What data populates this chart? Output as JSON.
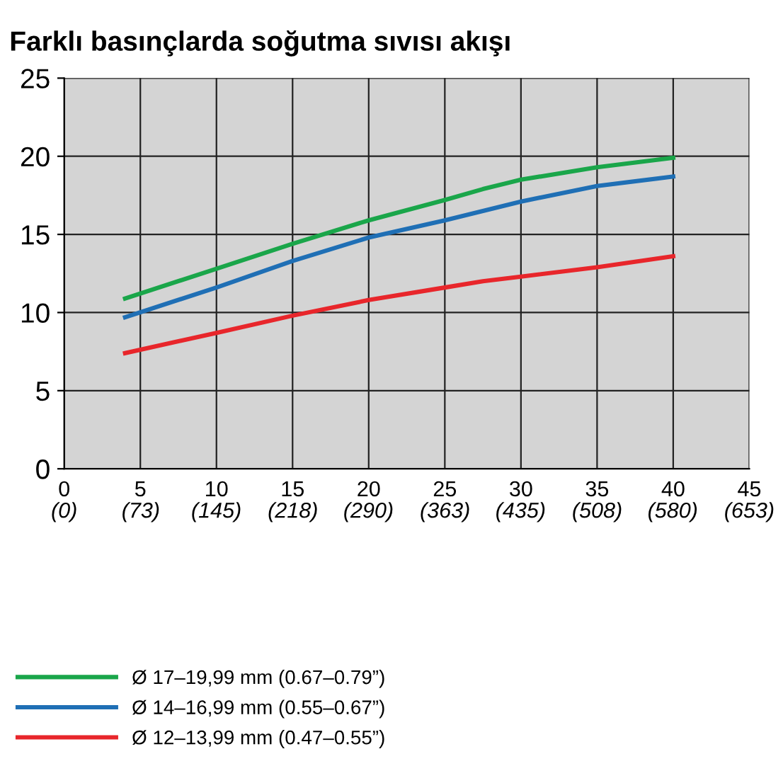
{
  "chart_data": {
    "type": "line",
    "title": "Farklı basınçlarda soğutma sıvısı akışı",
    "x": [
      4,
      10,
      15,
      20,
      25,
      27.5,
      30,
      35,
      40
    ],
    "series": [
      {
        "name": "Ø 17–19,99 mm (0.67–0.79”)",
        "color": "#1aa64a",
        "values": [
          10.9,
          12.8,
          14.4,
          15.9,
          17.2,
          17.9,
          18.5,
          19.3,
          19.9
        ]
      },
      {
        "name": "Ø 14–16,99 mm (0.55–0.67”)",
        "color": "#1f6fb5",
        "values": [
          9.7,
          11.6,
          13.3,
          14.8,
          15.9,
          16.5,
          17.1,
          18.1,
          18.7
        ]
      },
      {
        "name": "Ø 12–13,99 mm (0.47–0.55”)",
        "color": "#e8262b",
        "values": [
          7.4,
          8.7,
          9.8,
          10.8,
          11.6,
          12.0,
          12.3,
          12.9,
          13.6
        ]
      }
    ],
    "xlim": [
      0,
      45
    ],
    "xticks": [
      0,
      5,
      10,
      15,
      20,
      25,
      30,
      35,
      40,
      45
    ],
    "x2lim": [
      0,
      653
    ],
    "x2ticks": [
      {
        "value": 0,
        "label": "(0)"
      },
      {
        "value": 73,
        "label": "(73)"
      },
      {
        "value": 145,
        "label": "(145)"
      },
      {
        "value": 218,
        "label": "(218)"
      },
      {
        "value": 290,
        "label": "(290)"
      },
      {
        "value": 363,
        "label": "(363)"
      },
      {
        "value": 435,
        "label": "(435)"
      },
      {
        "value": 508,
        "label": "(508)"
      },
      {
        "value": 580,
        "label": "(580)"
      },
      {
        "value": 653,
        "label": "(653)"
      }
    ],
    "ylim": [
      0,
      25
    ],
    "yticks": [
      0,
      5,
      10,
      15,
      20,
      25
    ],
    "grid": true,
    "legend": "bottom left",
    "marker": "none",
    "line_style": "solid"
  }
}
